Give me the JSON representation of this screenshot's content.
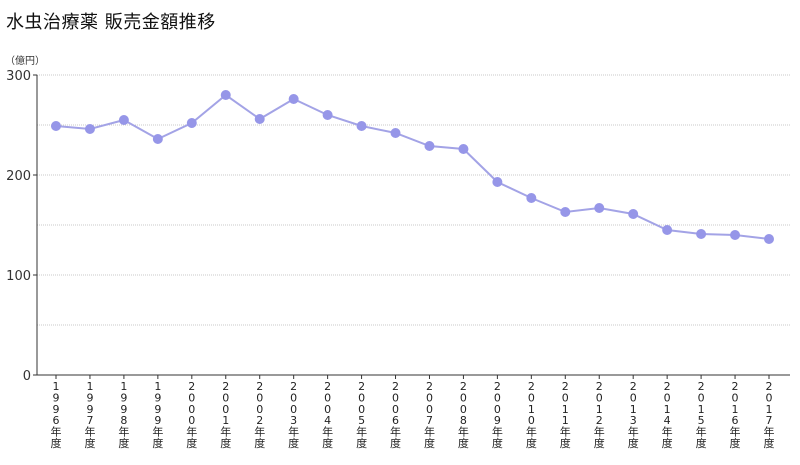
{
  "chart_data": {
    "type": "line",
    "title": "水虫治療薬 販売金額推移",
    "unit_label": "（億円）",
    "ylim": [
      0,
      300
    ],
    "yticks": [
      0,
      100,
      200,
      300
    ],
    "grid": true,
    "categories": [
      "1996年度",
      "1997年度",
      "1998年度",
      "1999年度",
      "2000年度",
      "2001年度",
      "2002年度",
      "2003年度",
      "2004年度",
      "2005年度",
      "2006年度",
      "2007年度",
      "2008年度",
      "2009年度",
      "2010年度",
      "2011年度",
      "2012年度",
      "2013年度",
      "2014年度",
      "2015年度",
      "2016年度",
      "2017年度"
    ],
    "series": [
      {
        "values": [
          249,
          246,
          255,
          236,
          252,
          280,
          256,
          276,
          260,
          249,
          242,
          229,
          226,
          193,
          177,
          163,
          167,
          161,
          145,
          141,
          140,
          136
        ]
      }
    ],
    "colors": {
      "line": "#a3a3e6",
      "marker": "#9696e8",
      "grid": "#c8c8c8",
      "axis": "#333333"
    }
  }
}
